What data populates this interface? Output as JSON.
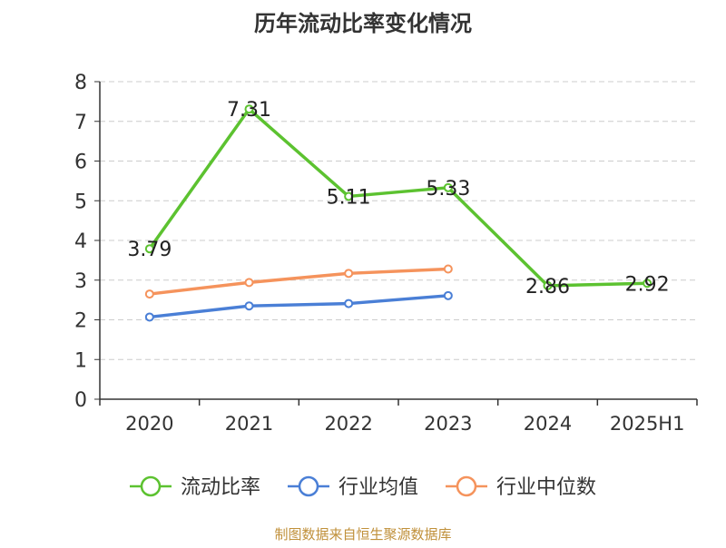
{
  "title": "历年流动比率变化情况",
  "source_note": "制图数据来自恒生聚源数据库",
  "colors": {
    "current_ratio": "#5cc230",
    "industry_avg": "#4a7fd6",
    "industry_median": "#f5935c",
    "axis": "#333333",
    "grid": "#cccccc",
    "source_note": "#c0903a"
  },
  "chart_data": {
    "type": "line",
    "title": "历年流动比率变化情况",
    "categories": [
      "2020",
      "2021",
      "2022",
      "2023",
      "2024",
      "2025H1"
    ],
    "ylim": [
      0,
      8
    ],
    "yticks": [
      0,
      1,
      2,
      3,
      4,
      5,
      6,
      7,
      8
    ],
    "grid": true,
    "legend_position": "bottom",
    "series": [
      {
        "key": "current_ratio",
        "name": "流动比率",
        "values": [
          3.79,
          7.31,
          5.11,
          5.33,
          2.86,
          2.92
        ],
        "labels": [
          "3.79",
          "7.31",
          "5.11",
          "5.33",
          "2.86",
          "2.92"
        ],
        "show_labels": true
      },
      {
        "key": "industry_avg",
        "name": "行业均值",
        "values": [
          2.07,
          2.35,
          2.41,
          2.61,
          null,
          null
        ],
        "show_labels": false
      },
      {
        "key": "industry_median",
        "name": "行业中位数",
        "values": [
          2.65,
          2.94,
          3.17,
          3.28,
          null,
          null
        ],
        "show_labels": false
      }
    ]
  }
}
